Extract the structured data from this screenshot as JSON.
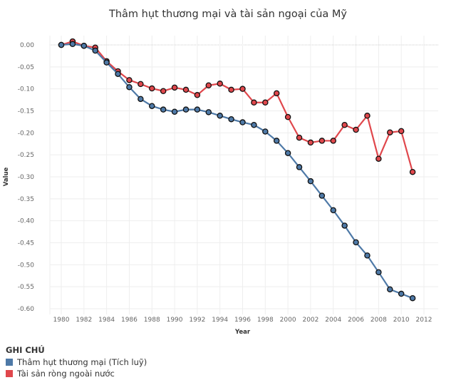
{
  "chart_data": {
    "type": "line",
    "title": "Thâm hụt thương mại và tài sản ngoại của Mỹ",
    "xlabel": "Year",
    "ylabel": "Value",
    "xlim": [
      1979,
      2013
    ],
    "ylim": [
      -0.62,
      0.02
    ],
    "x_ticks": [
      "1980",
      "1982",
      "1984",
      "1986",
      "1988",
      "1990",
      "1992",
      "1994",
      "1996",
      "1998",
      "2000",
      "2002",
      "2004",
      "2006",
      "2008",
      "2010",
      "2012"
    ],
    "y_ticks": [
      "0.00",
      "-0.05",
      "-0.10",
      "-0.15",
      "-0.20",
      "-0.25",
      "-0.30",
      "-0.35",
      "-0.40",
      "-0.45",
      "-0.50",
      "-0.55",
      "-0.60"
    ],
    "grid": true,
    "x": [
      1980,
      1981,
      1982,
      1983,
      1984,
      1985,
      1986,
      1987,
      1988,
      1989,
      1990,
      1991,
      1992,
      1993,
      1994,
      1995,
      1996,
      1997,
      1998,
      1999,
      2000,
      2001,
      2002,
      2003,
      2004,
      2005,
      2006,
      2007,
      2008,
      2009,
      2010,
      2011
    ],
    "series": [
      {
        "name": "Tài sản ròng ngoài nước",
        "color": "#e0474c",
        "values": [
          0.0,
          0.008,
          -0.002,
          -0.006,
          -0.037,
          -0.06,
          -0.08,
          -0.089,
          -0.099,
          -0.105,
          -0.097,
          -0.102,
          -0.114,
          -0.092,
          -0.088,
          -0.102,
          -0.1,
          -0.131,
          -0.131,
          -0.11,
          -0.164,
          -0.211,
          -0.222,
          -0.218,
          -0.218,
          -0.182,
          -0.193,
          -0.161,
          -0.259,
          -0.199,
          -0.196,
          -0.289
        ]
      },
      {
        "name": "Thâm hụt thương mại (Tích luỹ)",
        "color": "#4e79a7",
        "values": [
          0.0,
          0.002,
          -0.002,
          -0.013,
          -0.04,
          -0.066,
          -0.096,
          -0.123,
          -0.139,
          -0.147,
          -0.152,
          -0.147,
          -0.147,
          -0.153,
          -0.161,
          -0.169,
          -0.176,
          -0.182,
          -0.197,
          -0.218,
          -0.246,
          -0.278,
          -0.31,
          -0.343,
          -0.376,
          -0.411,
          -0.449,
          -0.479,
          -0.517,
          -0.556,
          -0.566,
          -0.576
        ]
      }
    ],
    "legend": {
      "title": "GHI CHÚ",
      "placement": "bottom-left",
      "items": [
        {
          "label": "Thâm hụt thương mại (Tích luỹ)",
          "color": "#4e79a7"
        },
        {
          "label": "Tài sản ròng ngoài nước",
          "color": "#e0474c"
        }
      ]
    }
  }
}
